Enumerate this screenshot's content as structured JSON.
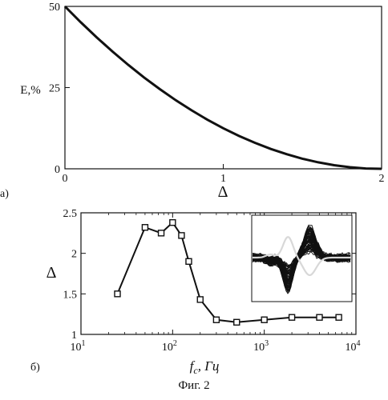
{
  "caption": "Фиг. 2",
  "chart_data": [
    {
      "type": "line",
      "panel_label": "а)",
      "xlabel": "Δ",
      "ylabel": "E,%",
      "xlim": [
        0,
        2
      ],
      "ylim": [
        0,
        50
      ],
      "x_ticks": [
        0,
        1,
        2
      ],
      "y_ticks": [
        0,
        25,
        50
      ],
      "grid": false,
      "series": [
        {
          "x": [
            0,
            0.1,
            0.2,
            0.3,
            0.4,
            0.5,
            0.6,
            0.7,
            0.8,
            0.9,
            1.0,
            1.1,
            1.2,
            1.3,
            1.4,
            1.5,
            1.6,
            1.7,
            1.8,
            1.9,
            2.0
          ],
          "y": [
            50,
            45.1,
            40.5,
            36.1,
            32.0,
            28.1,
            24.5,
            21.1,
            18.0,
            15.1,
            12.5,
            10.1,
            8.0,
            6.1,
            4.5,
            3.1,
            2.0,
            1.1,
            0.5,
            0.1,
            0.0
          ]
        }
      ]
    },
    {
      "type": "line",
      "panel_label": "б)",
      "xlabel": "f",
      "xlabel_sub": "c",
      "xlabel_unit": ", Гц",
      "ylabel": "Δ",
      "xscale": "log",
      "xlim": [
        10,
        10000
      ],
      "ylim": [
        1,
        2.5
      ],
      "x_ticks": [
        10,
        100,
        1000,
        10000
      ],
      "x_tick_labels": [
        {
          "base": "10",
          "exp": "1"
        },
        {
          "base": "10",
          "exp": "2"
        },
        {
          "base": "10",
          "exp": "3"
        },
        {
          "base": "10",
          "exp": "4"
        }
      ],
      "y_ticks": [
        1,
        1.5,
        2,
        2.5
      ],
      "y_tick_labels": [
        "1",
        "1.5",
        "2",
        "2.5"
      ],
      "grid": false,
      "marker": "square",
      "series": [
        {
          "x": [
            25,
            50,
            75,
            100,
            125,
            150,
            200,
            300,
            500,
            1000,
            2000,
            4000,
            6500
          ],
          "y": [
            1.5,
            2.32,
            2.25,
            2.38,
            2.22,
            1.9,
            1.43,
            1.18,
            1.15,
            1.18,
            1.21,
            1.21,
            1.21
          ]
        }
      ],
      "inset": {
        "type": "waveform_overlay",
        "description_visible": false,
        "colors": {
          "traces": "#111111",
          "mean": "#d8d8d8"
        }
      }
    }
  ]
}
